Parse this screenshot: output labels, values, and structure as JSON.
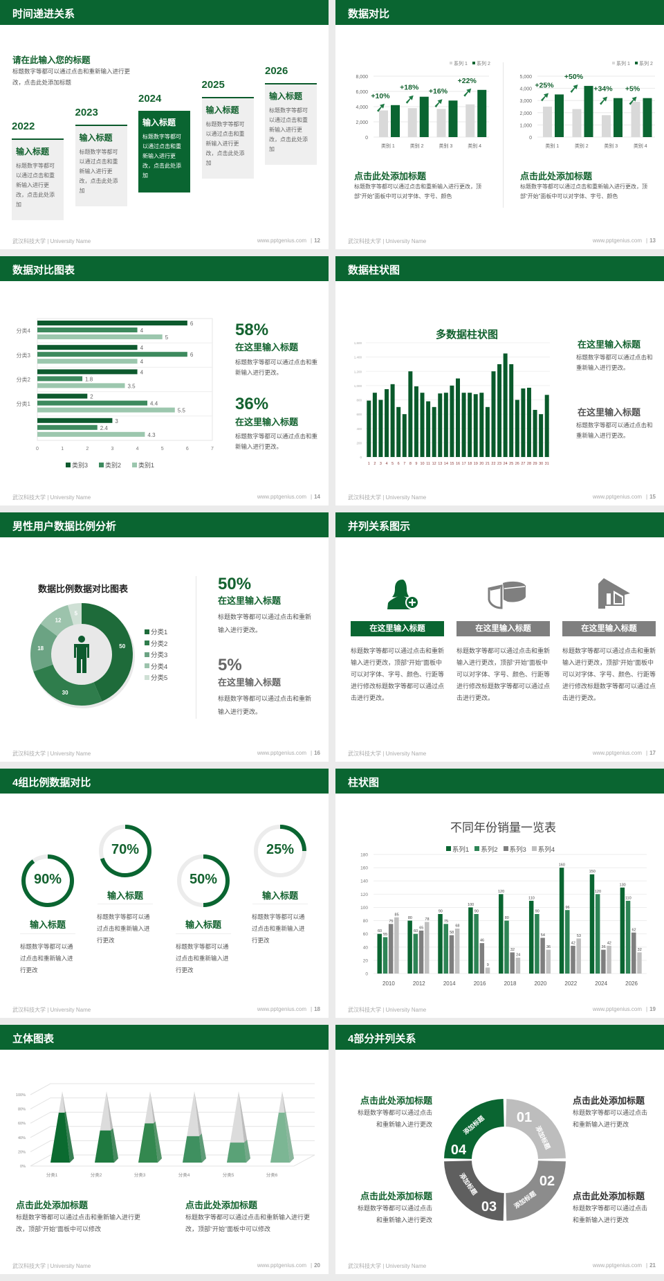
{
  "footer": {
    "left": "武汉科技大学 | University Name",
    "url": "www.pptgenius.com",
    "sep": "|"
  },
  "colors": {
    "brand_green": "#0a6531",
    "dark_green": "#0d5a2e",
    "mid_green": "#3d8a5e",
    "light_green": "#9cc7ae",
    "gray": "#7f7f7f",
    "light_gray": "#d9d9d9"
  },
  "s12": {
    "title": "时间递进关系",
    "page": "12",
    "heading": "请在此输入您的标题",
    "intro": "标题数字等都可以通过点击和重新输入进行更改，点击此处添加标题",
    "items": [
      {
        "year": "2022",
        "title": "输入标题",
        "body": "标题数字等都可以通过点击和重新输入进行更改，点击此处添加",
        "highlight": false
      },
      {
        "year": "2023",
        "title": "输入标题",
        "body": "标题数字等都可以通过点击和重新输入进行更改，点击此处添加",
        "highlight": false
      },
      {
        "year": "2024",
        "title": "输入标题",
        "body": "标题数字等都可以通过点击和重新输入进行更改，点击此处添加",
        "highlight": true
      },
      {
        "year": "2025",
        "title": "输入标题",
        "body": "标题数字等都可以通过点击和重新输入进行更改，点击此处添加",
        "highlight": false
      },
      {
        "year": "2026",
        "title": "输入标题",
        "body": "标题数字等都可以通过点击和重新输入进行更改，点击此处添加",
        "highlight": false
      }
    ]
  },
  "s13": {
    "title": "数据对比",
    "page": "13",
    "captions": [
      {
        "heading": "点击此处添加标题",
        "body": "标题数字等都可以通过点击和重新输入进行更改，顶部“开始”面板中可以对字体、字号、颜色"
      },
      {
        "heading": "点击此处添加标题",
        "body": "标题数字等都可以通过点击和重新输入进行更改，顶部“开始”面板中可以对字体、字号、颜色"
      }
    ]
  },
  "s14": {
    "title": "数据对比图表",
    "page": "14",
    "stats": [
      {
        "value": "58%",
        "heading": "在这里输入标题",
        "body": "标题数字等都可以通过点击和重新输入进行更改。"
      },
      {
        "value": "36%",
        "heading": "在这里输入标题",
        "body": "标题数字等都可以通过点击和重新输入进行更改。"
      }
    ]
  },
  "s15": {
    "title": "数据柱状图",
    "page": "15",
    "blocks": [
      {
        "heading": "在这里输入标题",
        "body": "标题数字等都可以通过点击和重新输入进行更改。"
      },
      {
        "heading": "在这里输入标题",
        "body": "标题数字等都可以通过点击和重新输入进行更改。"
      }
    ]
  },
  "s16": {
    "title": "男性用户数据比例分析",
    "page": "16",
    "stats": [
      {
        "value": "50%",
        "heading": "在这里输入标题",
        "body": "标题数字等都可以通过点击和重新输入进行更改。"
      },
      {
        "value": "5%",
        "heading": "在这里输入标题",
        "body": "标题数字等都可以通过点击和重新输入进行更改。"
      }
    ]
  },
  "s17": {
    "title": "并列关系图示",
    "page": "17",
    "columns": [
      {
        "icon": "woman-add-user-icon",
        "label": "在这里输入标题",
        "body": "标题数字等都可以通过点击和重新输入进行更改，顶部“开始”面板中可以对字体、字号、颜色、行距等进行修改标题数字等都可以通过点击进行更改。",
        "color": "#0a6531"
      },
      {
        "icon": "pie-chart-3d-icon",
        "label": "在这里输入标题",
        "body": "标题数字等都可以通过点击和重新输入进行更改，顶部“开始”面板中可以对字体、字号、颜色、行距等进行修改标题数字等都可以通过点击进行更改。",
        "color": "#7f7f7f"
      },
      {
        "icon": "building-icon",
        "label": "在这里输入标题",
        "body": "标题数字等都可以通过点击和重新输入进行更改，顶部“开始”面板中可以对字体、字号、颜色、行距等进行修改标题数字等都可以通过点击进行更改。",
        "color": "#7f7f7f"
      }
    ]
  },
  "s18": {
    "title": "4组比例数据对比",
    "page": "18",
    "rings": [
      {
        "label": "90%",
        "progress": 0.9,
        "heading": "输入标题",
        "body": "标题数字等都可以通过点击和重新输入进行更改"
      },
      {
        "label": "70%",
        "progress": 0.7,
        "heading": "输入标题",
        "body": "标题数字等都可以通过点击和重新输入进行更改"
      },
      {
        "label": "50%",
        "progress": 0.5,
        "heading": "输入标题",
        "body": "标题数字等都可以通过点击和重新输入进行更改"
      },
      {
        "label": "25%",
        "progress": 0.25,
        "heading": "输入标题",
        "body": "标题数字等都可以通过点击和重新输入进行更改"
      }
    ]
  },
  "s19": {
    "title": "柱状图",
    "page": "19"
  },
  "s20": {
    "title": "立体图表",
    "page": "20",
    "captions": [
      {
        "heading": "点击此处添加标题",
        "body": "标题数字等都可以通过点击和重新输入进行更改，顶部“开始”面板中可以修改"
      },
      {
        "heading": "点击此处添加标题",
        "body": "标题数字等都可以通过点击和重新输入进行更改，顶部“开始”面板中可以修改"
      }
    ]
  },
  "s21": {
    "title": "4部分并列关系",
    "page": "21",
    "segments": [
      {
        "number": "01",
        "label": "添加标题",
        "color": "#bdbdbd"
      },
      {
        "number": "02",
        "label": "添加标题",
        "color": "#8c8c8c"
      },
      {
        "number": "03",
        "label": "添加标题",
        "color": "#5f5f5f"
      },
      {
        "number": "04",
        "label": "添加标题",
        "color": "#0a6531"
      }
    ],
    "blocks": [
      {
        "heading": "点击此处添加标题",
        "line1": "标题数字等都可以通过点击",
        "line2": "和重新输入进行更改"
      },
      {
        "heading": "点击此处添加标题",
        "line1": "标题数字等都可以通过点击",
        "line2": "和重新输入进行更改"
      },
      {
        "heading": "点击此处添加标题",
        "line1": "标题数字等都可以通过点击",
        "line2": "和重新输入进行更改"
      },
      {
        "heading": "点击此处添加标题",
        "line1": "标题数字等都可以通过点击",
        "line2": "和重新输入进行更改"
      }
    ]
  },
  "chart_data": [
    {
      "type": "bar",
      "categories": [
        "类别 1",
        "类别 2",
        "类别 3",
        "类别 4"
      ],
      "yticks": [
        "0",
        "2,000",
        "4,000",
        "6,000",
        "8,000"
      ],
      "ylim": [
        0,
        8000
      ],
      "series": [
        {
          "name": "系列 1",
          "values": [
            3500,
            3800,
            3700,
            4300
          ],
          "color": "#d9d9d9"
        },
        {
          "name": "系列 2",
          "values": [
            4200,
            5300,
            4800,
            6200
          ],
          "color": "#0a6531"
        }
      ],
      "annotations": [
        "+10%",
        "+18%",
        "+16%",
        "+22%"
      ],
      "legend": "top-right",
      "grid": true
    },
    {
      "type": "bar",
      "categories": [
        "类别 1",
        "类别 2",
        "类别 3",
        "类别 4"
      ],
      "yticks": [
        "0",
        "1,000",
        "2,000",
        "3,000",
        "4,000",
        "5,000"
      ],
      "ylim": [
        0,
        5000
      ],
      "series": [
        {
          "name": "系列 1",
          "values": [
            2500,
            2300,
            1800,
            2900
          ],
          "color": "#d9d9d9"
        },
        {
          "name": "系列 2",
          "values": [
            3500,
            4200,
            3200,
            3200
          ],
          "color": "#0a6531"
        }
      ],
      "annotations": [
        "+25%",
        "+50%",
        "+34%",
        "+5%"
      ],
      "legend": "top-right",
      "grid": true
    },
    {
      "type": "bar",
      "orientation": "horizontal",
      "categories": [
        "分类4",
        "分类3",
        "分类2",
        "分类1",
        ""
      ],
      "xticks": [
        "0",
        "1",
        "2",
        "3",
        "4",
        "5",
        "6",
        "7"
      ],
      "xlim": [
        0,
        7
      ],
      "series": [
        {
          "name": "类别3",
          "values": [
            6,
            4,
            4,
            2,
            3
          ],
          "color": "#0d5a2e"
        },
        {
          "name": "类别2",
          "values": [
            4,
            6,
            1.8,
            4.4,
            2.4
          ],
          "color": "#3d8a5e"
        },
        {
          "name": "类别1",
          "values": [
            5,
            4,
            3.5,
            5.5,
            4.3
          ],
          "color": "#9cc7ae"
        }
      ],
      "legend": "bottom"
    },
    {
      "type": "bar",
      "title": "多数据柱状图",
      "categories": [
        "1",
        "2",
        "3",
        "4",
        "5",
        "6",
        "7",
        "8",
        "9",
        "10",
        "11",
        "12",
        "13",
        "14",
        "15",
        "16",
        "17",
        "18",
        "19",
        "20",
        "21",
        "22",
        "23",
        "24",
        "25",
        "26",
        "27",
        "28",
        "29",
        "30",
        "31"
      ],
      "values": [
        790,
        900,
        800,
        950,
        1020,
        700,
        600,
        1200,
        990,
        900,
        780,
        700,
        890,
        900,
        1000,
        1100,
        900,
        900,
        880,
        900,
        700,
        1200,
        1300,
        1450,
        1300,
        800,
        960,
        970,
        660,
        600,
        870
      ],
      "yticks": [
        "0",
        "200",
        "400",
        "600",
        "800",
        "1,000",
        "1,200",
        "1,400",
        "1,600"
      ],
      "ylim": [
        0,
        1600
      ],
      "color": "#0a5a2b",
      "grid": true
    },
    {
      "type": "pie",
      "donut": true,
      "title": "数据比例数据对比图表",
      "categories": [
        "分类1",
        "分类2",
        "分类3",
        "分类4",
        "分类5"
      ],
      "values": [
        50,
        30,
        18,
        12,
        5
      ],
      "labels": [
        "50",
        "30",
        "18",
        "12",
        "5"
      ],
      "colors": [
        "#1e6b3a",
        "#2f7d4c",
        "#6ba383",
        "#9cc3ac",
        "#cfe0d5"
      ],
      "legend": "right"
    },
    {
      "type": "bar",
      "title": "不同年份销量一览表",
      "categories": [
        "2010",
        "2012",
        "2014",
        "2016",
        "2018",
        "2020",
        "2022",
        "2024",
        "2026"
      ],
      "yticks": [
        "0",
        "20",
        "40",
        "60",
        "80",
        "100",
        "120",
        "140",
        "160",
        "180"
      ],
      "ylim": [
        0,
        180
      ],
      "series": [
        {
          "name": "系列1",
          "values": [
            60,
            80,
            90,
            100,
            120,
            110,
            160,
            150,
            130
          ],
          "color": "#0a6531"
        },
        {
          "name": "系列2",
          "values": [
            55,
            60,
            75,
            90,
            80,
            90,
            96,
            120,
            110
          ],
          "color": "#2e8556"
        },
        {
          "name": "系列3",
          "values": [
            75,
            65,
            58,
            46,
            32,
            54,
            42,
            36,
            62
          ],
          "color": "#7f7f7f"
        },
        {
          "name": "系列4",
          "values": [
            85,
            78,
            68,
            9,
            24,
            36,
            53,
            42,
            32
          ],
          "color": "#bfbfbf"
        }
      ],
      "legend": "top",
      "grid": true
    },
    {
      "type": "bar",
      "subtype": "3d-pyramid-stacked-percent",
      "categories": [
        "分类1",
        "分类2",
        "分类3",
        "分类4",
        "分类5",
        "分类6"
      ],
      "values": [
        0.7,
        0.45,
        0.55,
        0.37,
        0.28,
        0.7
      ],
      "yticks": [
        "0%",
        "20%",
        "40%",
        "60%",
        "80%",
        "100%"
      ],
      "ylim": [
        0,
        1
      ],
      "colors": [
        "#0b6b30",
        "#1f7a40",
        "#33884f",
        "#3f9060",
        "#5aa277",
        "#7cb694"
      ],
      "remainder_color": "#d9d9d9"
    }
  ]
}
